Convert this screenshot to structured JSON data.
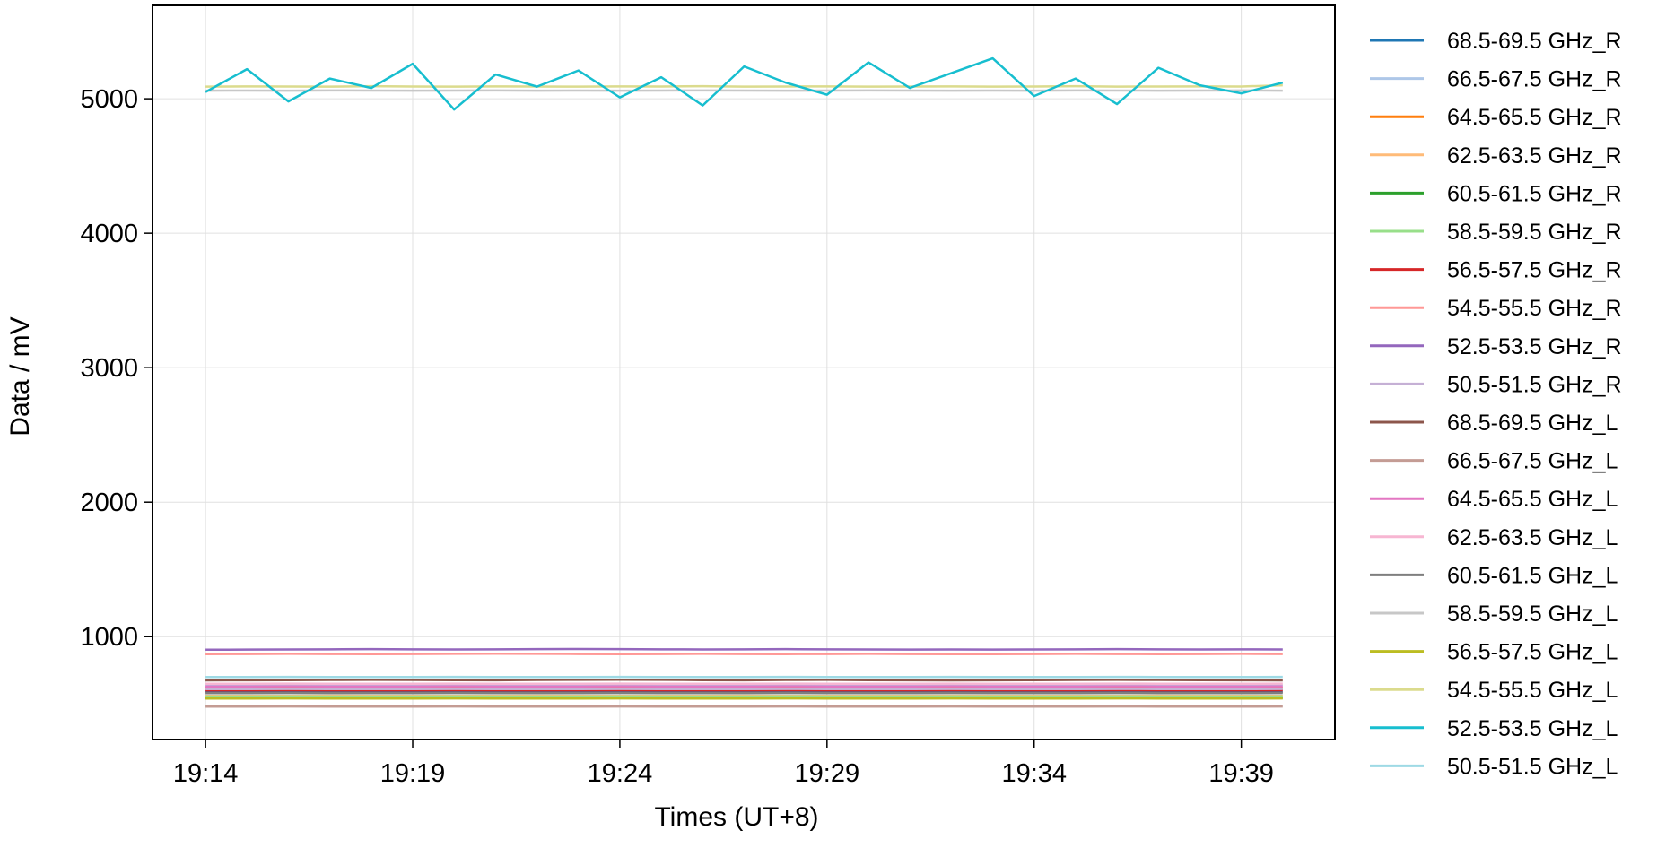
{
  "chart_data": {
    "type": "line",
    "x_label": "Times (UT+8)",
    "y_label": "Data / mV",
    "x": [
      1154,
      1155,
      1156,
      1157,
      1158,
      1159,
      1160,
      1161,
      1162,
      1163,
      1164,
      1165,
      1166,
      1167,
      1168,
      1169,
      1170,
      1171,
      1172,
      1173,
      1174,
      1175,
      1176,
      1177,
      1178,
      1179,
      1180
    ],
    "xlim": [
      1152.72,
      1181.26
    ],
    "xticks": [
      {
        "value": 1154,
        "label": "19:14"
      },
      {
        "value": 1159,
        "label": "19:19"
      },
      {
        "value": 1164,
        "label": "19:24"
      },
      {
        "value": 1169,
        "label": "19:29"
      },
      {
        "value": 1174,
        "label": "19:34"
      },
      {
        "value": 1179,
        "label": "19:39"
      }
    ],
    "ylim": [
      235,
      5694
    ],
    "yticks": [
      1000,
      2000,
      3000,
      4000,
      5000
    ],
    "grid": true,
    "legend": "right",
    "series": [
      {
        "name": "68.5-69.5 GHz_R",
        "color": "#1f77b4",
        "values": [
          590,
          590,
          591,
          590,
          590,
          589,
          590,
          591,
          590,
          590,
          590,
          589,
          590,
          590,
          591,
          590,
          590,
          590,
          589,
          590,
          590,
          591,
          590,
          590,
          590,
          589,
          590
        ]
      },
      {
        "name": "66.5-67.5 GHz_R",
        "color": "#aec7e8",
        "values": [
          640,
          640,
          641,
          640,
          641,
          640,
          640,
          640,
          641,
          640,
          640,
          640,
          641,
          640,
          640,
          641,
          640,
          640,
          640,
          641,
          640,
          640,
          640,
          641,
          640,
          640,
          640
        ]
      },
      {
        "name": "64.5-65.5 GHz_R",
        "color": "#ff7f0e",
        "values": [
          620,
          620,
          621,
          620,
          620,
          620,
          621,
          620,
          620,
          620,
          621,
          620,
          620,
          620,
          620,
          621,
          620,
          620,
          620,
          620,
          621,
          620,
          620,
          620,
          620,
          621,
          620
        ]
      },
      {
        "name": "62.5-63.5 GHz_R",
        "color": "#ffbb78",
        "values": [
          560,
          560,
          560,
          561,
          560,
          560,
          560,
          560,
          561,
          560,
          560,
          560,
          560,
          561,
          560,
          560,
          560,
          560,
          561,
          560,
          560,
          560,
          560,
          561,
          560,
          560,
          560
        ]
      },
      {
        "name": "60.5-61.5 GHz_R",
        "color": "#2ca02c",
        "values": [
          545,
          545,
          545,
          546,
          545,
          545,
          545,
          545,
          546,
          545,
          545,
          545,
          545,
          546,
          545,
          545,
          545,
          545,
          546,
          545,
          545,
          545,
          545,
          546,
          545,
          545,
          545
        ]
      },
      {
        "name": "58.5-59.5 GHz_R",
        "color": "#98df8a",
        "values": [
          555,
          555,
          556,
          555,
          555,
          555,
          556,
          555,
          555,
          555,
          556,
          555,
          555,
          555,
          556,
          555,
          555,
          555,
          556,
          555,
          555,
          555,
          556,
          555,
          555,
          555,
          556
        ]
      },
      {
        "name": "56.5-57.5 GHz_R",
        "color": "#d62728",
        "values": [
          600,
          600,
          601,
          600,
          600,
          600,
          601,
          600,
          600,
          600,
          601,
          600,
          600,
          600,
          601,
          600,
          600,
          600,
          601,
          600,
          600,
          600,
          601,
          600,
          600,
          600,
          601
        ]
      },
      {
        "name": "54.5-55.5 GHz_R",
        "color": "#ff9896",
        "values": [
          870,
          871,
          872,
          871,
          870,
          871,
          872,
          873,
          872,
          871,
          870,
          871,
          872,
          871,
          870,
          871,
          872,
          871,
          870,
          870,
          871,
          872,
          871,
          870,
          871,
          872,
          871
        ]
      },
      {
        "name": "52.5-53.5 GHz_R",
        "color": "#9467bd",
        "values": [
          903,
          904,
          905,
          906,
          907,
          906,
          905,
          906,
          907,
          908,
          907,
          906,
          905,
          906,
          907,
          906,
          905,
          904,
          905,
          904,
          905,
          906,
          907,
          906,
          905,
          906,
          905
        ]
      },
      {
        "name": "50.5-51.5 GHz_R",
        "color": "#c5b0d5",
        "values": [
          610,
          610,
          611,
          610,
          610,
          610,
          611,
          610,
          610,
          610,
          611,
          610,
          610,
          610,
          611,
          610,
          610,
          610,
          611,
          610,
          610,
          610,
          611,
          610,
          610,
          610,
          611
        ]
      },
      {
        "name": "68.5-69.5 GHz_L",
        "color": "#8c564b",
        "values": [
          675,
          676,
          677,
          678,
          679,
          678,
          677,
          676,
          678,
          679,
          680,
          679,
          677,
          676,
          678,
          679,
          677,
          676,
          675,
          676,
          677,
          678,
          679,
          678,
          677,
          676,
          675
        ]
      },
      {
        "name": "66.5-67.5 GHz_L",
        "color": "#c49c94",
        "values": [
          480,
          480,
          481,
          480,
          480,
          480,
          481,
          480,
          480,
          480,
          481,
          480,
          480,
          480,
          481,
          480,
          480,
          480,
          481,
          480,
          480,
          480,
          481,
          480,
          480,
          480,
          481
        ]
      },
      {
        "name": "64.5-65.5 GHz_L",
        "color": "#e377c2",
        "values": [
          630,
          630,
          631,
          630,
          630,
          630,
          631,
          630,
          630,
          630,
          631,
          630,
          630,
          630,
          631,
          630,
          630,
          630,
          631,
          630,
          630,
          630,
          631,
          630,
          630,
          630,
          631
        ]
      },
      {
        "name": "62.5-63.5 GHz_L",
        "color": "#f7b6d2",
        "values": [
          650,
          650,
          651,
          650,
          650,
          650,
          651,
          650,
          650,
          650,
          651,
          650,
          650,
          650,
          651,
          650,
          650,
          650,
          651,
          650,
          650,
          650,
          651,
          650,
          650,
          650,
          651
        ]
      },
      {
        "name": "60.5-61.5 GHz_L",
        "color": "#7f7f7f",
        "values": [
          580,
          580,
          581,
          580,
          580,
          580,
          581,
          580,
          580,
          580,
          581,
          580,
          580,
          580,
          581,
          580,
          580,
          580,
          581,
          580,
          580,
          580,
          581,
          580,
          580,
          580,
          581
        ]
      },
      {
        "name": "58.5-59.5 GHz_L",
        "color": "#c7c7c7",
        "values": [
          5060,
          5061,
          5060,
          5062,
          5061,
          5060,
          5061,
          5062,
          5060,
          5061,
          5060,
          5061,
          5062,
          5061,
          5060,
          5061,
          5062,
          5061,
          5060,
          5061,
          5060,
          5062,
          5061,
          5060,
          5061,
          5062,
          5060
        ]
      },
      {
        "name": "56.5-57.5 GHz_L",
        "color": "#bcbd22",
        "values": [
          540,
          540,
          541,
          540,
          540,
          540,
          541,
          540,
          540,
          540,
          541,
          540,
          540,
          540,
          541,
          540,
          540,
          540,
          541,
          540,
          540,
          540,
          541,
          540,
          540,
          540,
          541
        ]
      },
      {
        "name": "54.5-55.5 GHz_L",
        "color": "#dbdb8d",
        "values": [
          5090,
          5092,
          5091,
          5090,
          5093,
          5091,
          5090,
          5092,
          5091,
          5090,
          5092,
          5091,
          5093,
          5090,
          5091,
          5092,
          5090,
          5091,
          5092,
          5090,
          5091,
          5093,
          5090,
          5091,
          5092,
          5091,
          5100
        ]
      },
      {
        "name": "52.5-53.5 GHz_L",
        "color": "#17becf",
        "values": [
          5050,
          5220,
          4980,
          5150,
          5080,
          5260,
          4920,
          5180,
          5090,
          5210,
          5010,
          5160,
          4950,
          5240,
          5120,
          5030,
          5270,
          5080,
          5190,
          5300,
          5020,
          5150,
          4960,
          5230,
          5100,
          5040,
          5120
        ]
      },
      {
        "name": "50.5-51.5 GHz_L",
        "color": "#9edae5",
        "values": [
          700,
          700,
          701,
          700,
          700,
          700,
          701,
          700,
          700,
          700,
          701,
          700,
          700,
          700,
          701,
          700,
          700,
          700,
          701,
          700,
          700,
          700,
          701,
          700,
          700,
          700,
          701
        ]
      }
    ]
  }
}
